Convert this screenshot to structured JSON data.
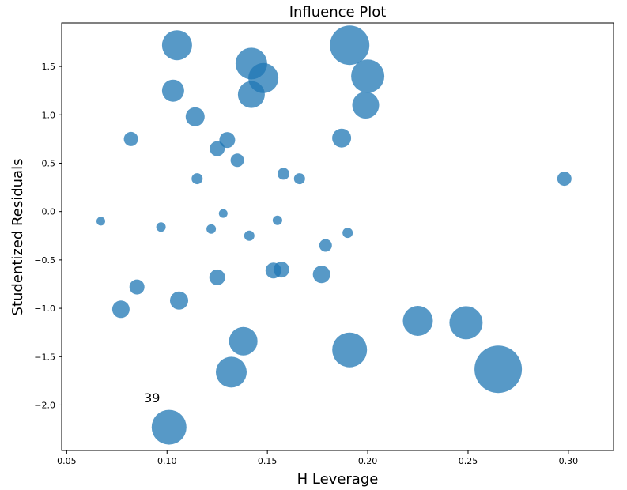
{
  "chart_data": {
    "type": "scatter",
    "title": "Influence Plot",
    "xlabel": "H Leverage",
    "ylabel": "Studentized Residuals",
    "xlim": [
      0.0475,
      0.3225
    ],
    "ylim": [
      -2.47,
      1.95
    ],
    "xticks": [
      {
        "value": 0.05,
        "label": "0.05"
      },
      {
        "value": 0.1,
        "label": "0.10"
      },
      {
        "value": 0.15,
        "label": "0.15"
      },
      {
        "value": 0.2,
        "label": "0.20"
      },
      {
        "value": 0.25,
        "label": "0.25"
      },
      {
        "value": 0.3,
        "label": "0.30"
      }
    ],
    "yticks": [
      {
        "value": 1.5,
        "label": "1.5"
      },
      {
        "value": 1.0,
        "label": "1.0"
      },
      {
        "value": 0.5,
        "label": "0.5"
      },
      {
        "value": 0.0,
        "label": "0.0"
      },
      {
        "value": -0.5,
        "label": "−0.5"
      },
      {
        "value": -1.0,
        "label": "−1.0"
      },
      {
        "value": -1.5,
        "label": "−1.5"
      },
      {
        "value": -2.0,
        "label": "−2.0"
      }
    ],
    "marker_color": "#1f77b4",
    "marker_alpha": 0.75,
    "points": [
      {
        "x": 0.105,
        "y": 1.72,
        "size": 19
      },
      {
        "x": 0.142,
        "y": 1.53,
        "size": 20
      },
      {
        "x": 0.191,
        "y": 1.72,
        "size": 25
      },
      {
        "x": 0.148,
        "y": 1.38,
        "size": 19
      },
      {
        "x": 0.2,
        "y": 1.4,
        "size": 21
      },
      {
        "x": 0.103,
        "y": 1.25,
        "size": 14
      },
      {
        "x": 0.142,
        "y": 1.21,
        "size": 17
      },
      {
        "x": 0.199,
        "y": 1.1,
        "size": 17
      },
      {
        "x": 0.114,
        "y": 0.98,
        "size": 12
      },
      {
        "x": 0.082,
        "y": 0.75,
        "size": 9
      },
      {
        "x": 0.187,
        "y": 0.76,
        "size": 12
      },
      {
        "x": 0.13,
        "y": 0.74,
        "size": 10
      },
      {
        "x": 0.125,
        "y": 0.65,
        "size": 9.5
      },
      {
        "x": 0.135,
        "y": 0.53,
        "size": 8.5
      },
      {
        "x": 0.158,
        "y": 0.39,
        "size": 7.5
      },
      {
        "x": 0.115,
        "y": 0.34,
        "size": 7
      },
      {
        "x": 0.166,
        "y": 0.34,
        "size": 7
      },
      {
        "x": 0.298,
        "y": 0.34,
        "size": 9
      },
      {
        "x": 0.067,
        "y": -0.1,
        "size": 5.5
      },
      {
        "x": 0.128,
        "y": -0.02,
        "size": 5.5
      },
      {
        "x": 0.155,
        "y": -0.09,
        "size": 6
      },
      {
        "x": 0.097,
        "y": -0.16,
        "size": 6
      },
      {
        "x": 0.122,
        "y": -0.18,
        "size": 6
      },
      {
        "x": 0.141,
        "y": -0.25,
        "size": 6.5
      },
      {
        "x": 0.19,
        "y": -0.22,
        "size": 6.5
      },
      {
        "x": 0.179,
        "y": -0.35,
        "size": 8
      },
      {
        "x": 0.153,
        "y": -0.61,
        "size": 10
      },
      {
        "x": 0.157,
        "y": -0.6,
        "size": 10
      },
      {
        "x": 0.177,
        "y": -0.65,
        "size": 11
      },
      {
        "x": 0.125,
        "y": -0.68,
        "size": 10
      },
      {
        "x": 0.085,
        "y": -0.78,
        "size": 9.5
      },
      {
        "x": 0.106,
        "y": -0.92,
        "size": 11.5
      },
      {
        "x": 0.077,
        "y": -1.01,
        "size": 11
      },
      {
        "x": 0.225,
        "y": -1.13,
        "size": 19
      },
      {
        "x": 0.249,
        "y": -1.15,
        "size": 21
      },
      {
        "x": 0.138,
        "y": -1.34,
        "size": 18
      },
      {
        "x": 0.191,
        "y": -1.43,
        "size": 22
      },
      {
        "x": 0.132,
        "y": -1.66,
        "size": 19.5
      },
      {
        "x": 0.265,
        "y": -1.63,
        "size": 30
      },
      {
        "x": 0.101,
        "y": -2.23,
        "size": 22
      }
    ],
    "annotations": [
      {
        "text": "39",
        "x": 0.0885,
        "y": -1.97
      }
    ]
  }
}
